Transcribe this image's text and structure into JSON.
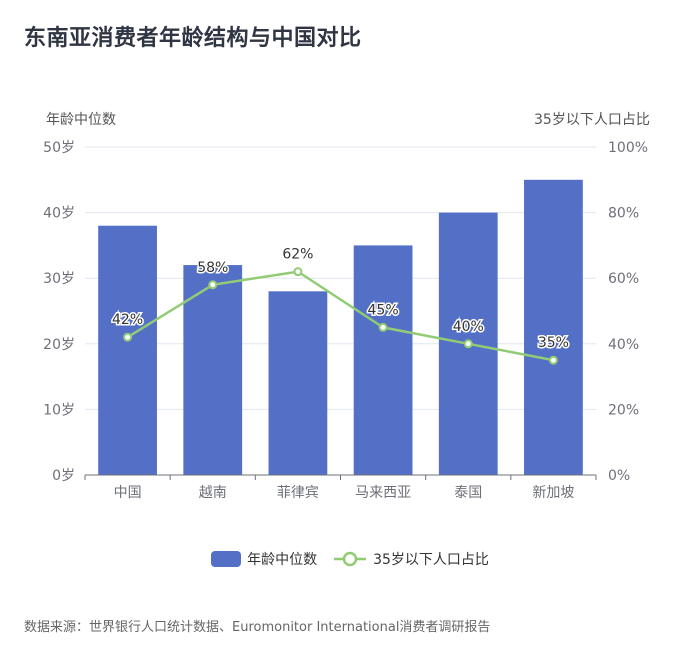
{
  "title": "东南亚消费者年龄结构与中国对比",
  "left_axis_name": "年龄中位数",
  "right_axis_name": "35岁以下人口占比",
  "source": "数据来源：世界银行人口统计数据、Euromonitor International消费者调研报告",
  "legend": {
    "bar_label": "年龄中位数",
    "line_label": "35岁以下人口占比"
  },
  "colors": {
    "bar": "#5470c6",
    "line": "#91cc75",
    "grid": "#e0e6f1",
    "axis": "#6e7079"
  },
  "chart_data": {
    "type": "bar",
    "title": "东南亚消费者年龄结构与中国对比",
    "categories": [
      "中国",
      "越南",
      "菲律宾",
      "马来西亚",
      "泰国",
      "新加坡"
    ],
    "series": [
      {
        "name": "年龄中位数",
        "type": "bar",
        "axis": "left",
        "values": [
          38,
          32,
          28,
          35,
          40,
          45
        ]
      },
      {
        "name": "35岁以下人口占比",
        "type": "line",
        "axis": "right",
        "values": [
          42,
          58,
          62,
          45,
          40,
          35
        ],
        "labels": [
          "42%",
          "58%",
          "62%",
          "45%",
          "40%",
          "35%"
        ]
      }
    ],
    "ylabel": "年龄中位数",
    "ylabel_right": "35岁以下人口占比",
    "ylim": [
      0,
      50
    ],
    "ylim_right": [
      0,
      100
    ],
    "yticks": [
      "0岁",
      "10岁",
      "20岁",
      "30岁",
      "40岁",
      "50岁"
    ],
    "yticks_right": [
      "0%",
      "20%",
      "40%",
      "60%",
      "80%",
      "100%"
    ],
    "grid": true,
    "legend_position": "bottom"
  }
}
